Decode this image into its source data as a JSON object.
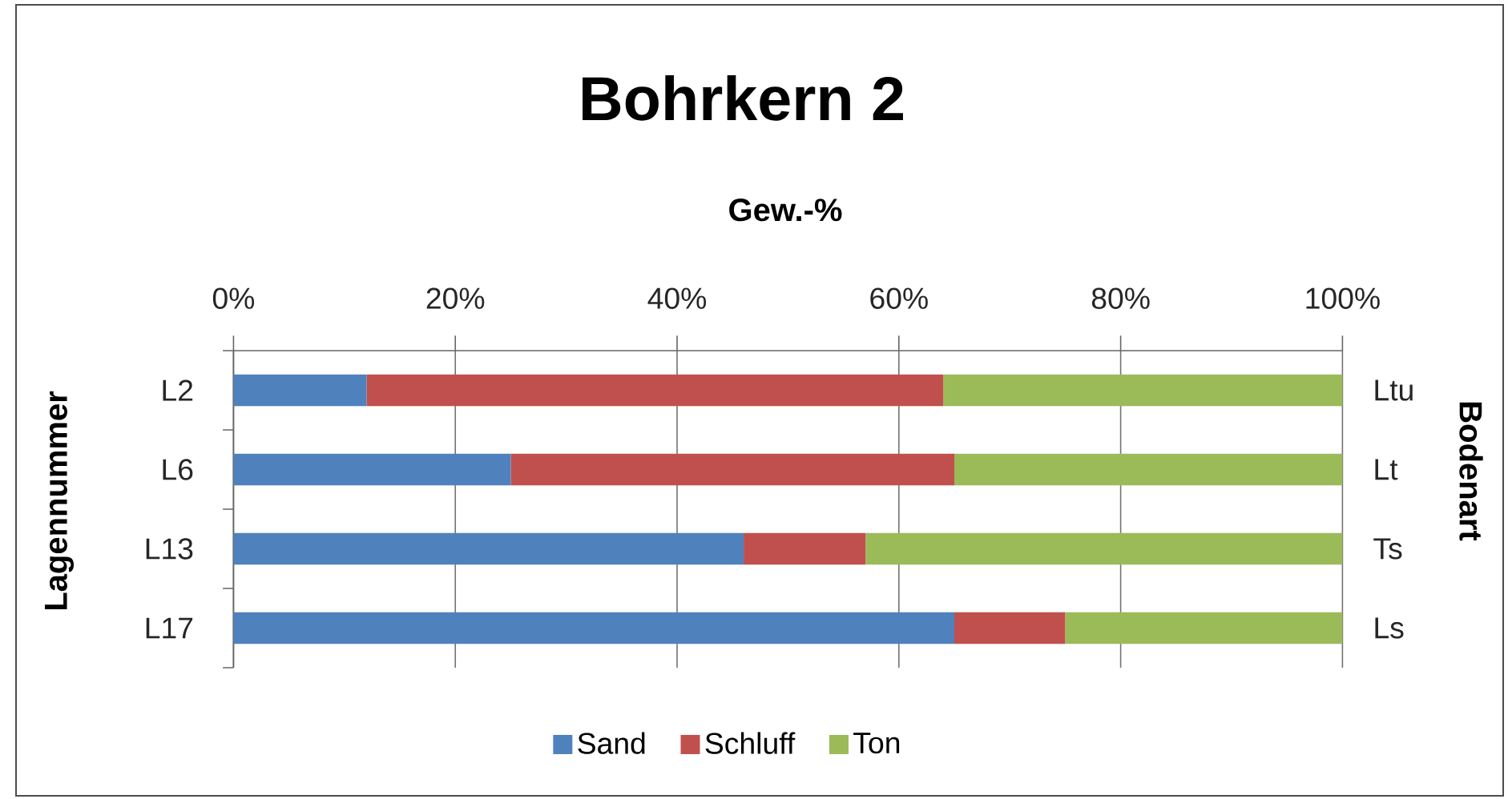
{
  "chart_data": {
    "type": "bar",
    "orientation": "horizontal",
    "stacked": true,
    "title": "Bohrkern 2",
    "xlabel": "Gew.-%",
    "ylabel": "Lagennummer",
    "y2label": "Bodenart",
    "categories": [
      "L2",
      "L6",
      "L13",
      "L17"
    ],
    "series": [
      {
        "name": "Sand",
        "color": "#4f81bd",
        "values": [
          12,
          25,
          46,
          65
        ]
      },
      {
        "name": "Schluff",
        "color": "#c0504d",
        "values": [
          52,
          40,
          11,
          10
        ]
      },
      {
        "name": "Ton",
        "color": "#9bbb59",
        "values": [
          36,
          35,
          43,
          25
        ]
      }
    ],
    "xlim": [
      0,
      100
    ],
    "xticks": [
      {
        "value": 0,
        "label": "0%"
      },
      {
        "value": 20,
        "label": "20%"
      },
      {
        "value": 40,
        "label": "40%"
      },
      {
        "value": 60,
        "label": "60%"
      },
      {
        "value": 80,
        "label": "80%"
      },
      {
        "value": 100,
        "label": "100%"
      }
    ],
    "annotations": [
      "Ltu",
      "Lt",
      "Ts",
      "Ls"
    ],
    "grid": "x",
    "legend": "bottom"
  }
}
